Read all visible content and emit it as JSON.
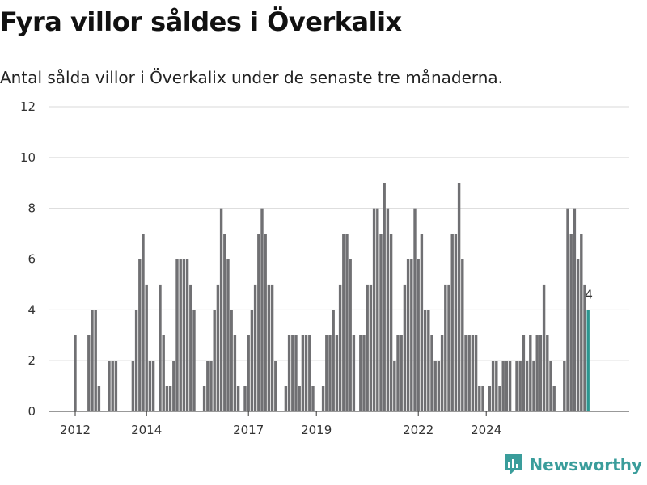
{
  "title": "Fyra villor såldes i Överkalix",
  "subtitle": "Antal sålda villor i Överkalix under de senaste tre månaderna.",
  "brand": "Newsworthy",
  "colors": {
    "bar": "#707073",
    "highlight": "#2b9690",
    "grid": "#d9d9d9",
    "brand": "#3a9d9b"
  },
  "chart_data": {
    "type": "bar",
    "title": "Fyra villor såldes i Överkalix",
    "subtitle": "Antal sålda villor i Överkalix under de senaste tre månaderna.",
    "ylim": [
      0,
      12
    ],
    "yticks": [
      0,
      2,
      4,
      6,
      8,
      10,
      12
    ],
    "xticks": [
      {
        "label": "2012",
        "index": 0
      },
      {
        "label": "2014",
        "index": 21
      },
      {
        "label": "2017",
        "index": 51
      },
      {
        "label": "2019",
        "index": 71
      },
      {
        "label": "2022",
        "index": 101
      },
      {
        "label": "2024",
        "index": 121
      }
    ],
    "grid": true,
    "values": [
      3,
      0,
      0,
      0,
      3,
      4,
      4,
      1,
      0,
      0,
      2,
      2,
      2,
      0,
      0,
      0,
      0,
      2,
      4,
      6,
      7,
      5,
      2,
      2,
      0,
      5,
      3,
      1,
      1,
      2,
      6,
      6,
      6,
      6,
      5,
      4,
      0,
      0,
      1,
      2,
      2,
      4,
      5,
      8,
      7,
      6,
      4,
      3,
      1,
      0,
      1,
      3,
      4,
      5,
      7,
      8,
      7,
      5,
      5,
      2,
      0,
      0,
      1,
      3,
      3,
      3,
      1,
      3,
      3,
      3,
      1,
      0,
      0,
      1,
      3,
      3,
      4,
      3,
      5,
      7,
      7,
      6,
      3,
      0,
      3,
      3,
      5,
      5,
      8,
      8,
      7,
      9,
      8,
      7,
      2,
      3,
      3,
      5,
      6,
      6,
      8,
      6,
      7,
      4,
      4,
      3,
      2,
      2,
      3,
      5,
      5,
      7,
      7,
      9,
      6,
      3,
      3,
      3,
      3,
      1,
      1,
      0,
      1,
      2,
      2,
      1,
      2,
      2,
      2,
      0,
      2,
      2,
      3,
      2,
      3,
      2,
      3,
      3,
      5,
      3,
      2,
      1,
      0,
      0,
      2,
      8,
      7,
      8,
      6,
      7,
      5,
      4
    ],
    "highlight_index": 151,
    "annotation": "4"
  }
}
